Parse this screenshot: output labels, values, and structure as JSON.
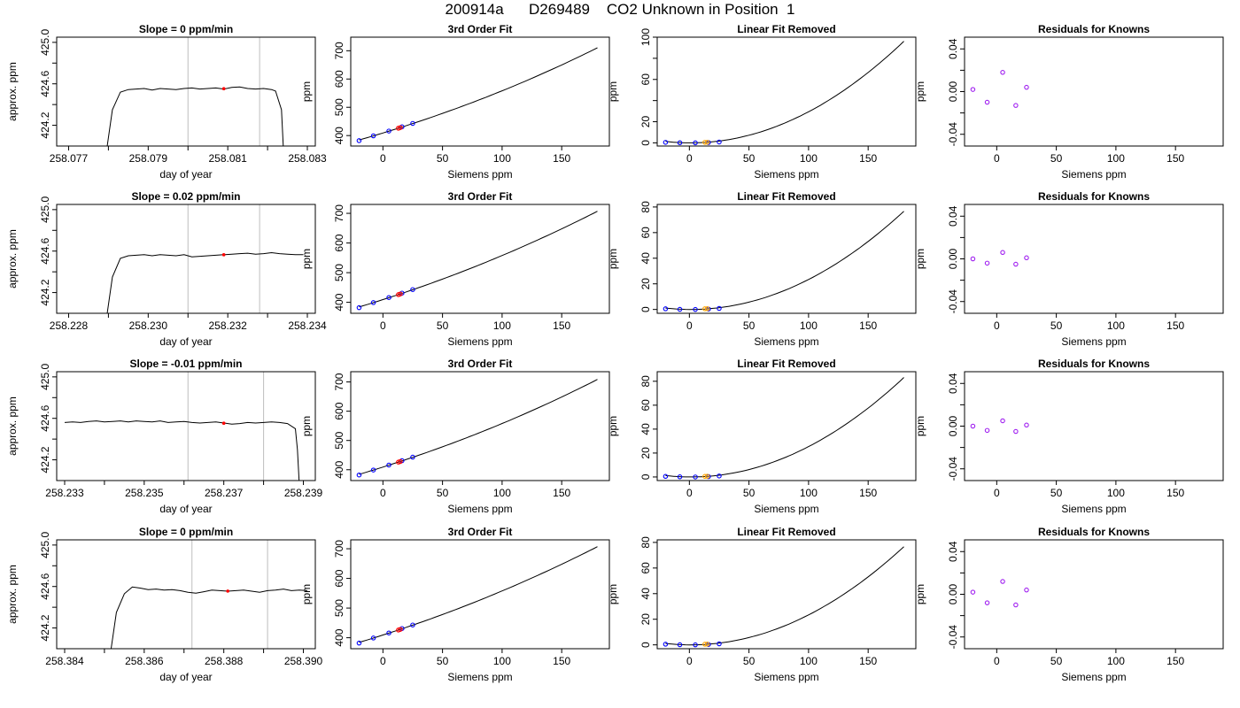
{
  "page_title": "200914a      D269489    CO2 Unknown in Position  1",
  "colors": {
    "trace": "#000000",
    "frame": "#000000",
    "vline": "#bebebe",
    "marker_red": "#ff0000",
    "marker_blue": "#0000ff",
    "marker_orange": "#ffa500",
    "marker_purple": "#a020f0"
  },
  "chart_data": [
    {
      "type": "line",
      "title": "Slope =  0  ppm/min",
      "xlabel": "day of year",
      "ylabel": "approx. ppm",
      "xlim": [
        258.0767,
        258.0832
      ],
      "ylim": [
        424.0,
        425.05
      ],
      "xticks": [
        258.077,
        258.078,
        258.079,
        258.08,
        258.081,
        258.082,
        258.083
      ],
      "xtick_labels": [
        "258.077",
        "",
        "258.079",
        "",
        "258.081",
        "",
        "258.083"
      ],
      "yticks": [
        424.2,
        424.4,
        424.6,
        424.8,
        425.0
      ],
      "ytick_labels": [
        "424.2",
        "",
        "424.6",
        "",
        "425.0"
      ],
      "vlines": [
        258.08,
        258.0818
      ],
      "x": [
        258.07795,
        258.0781,
        258.0783,
        258.0785,
        258.0787,
        258.0789,
        258.0791,
        258.0793,
        258.0795,
        258.0797,
        258.0799,
        258.0801,
        258.0803,
        258.0805,
        258.0807,
        258.0809,
        258.0811,
        258.0813,
        258.0815,
        258.0817,
        258.0819,
        258.0821,
        258.0822,
        258.08235,
        258.0824
      ],
      "y": [
        423.95,
        424.35,
        424.52,
        424.545,
        424.55,
        424.555,
        424.54,
        424.555,
        424.55,
        424.545,
        424.555,
        424.56,
        424.55,
        424.555,
        424.56,
        424.55,
        424.565,
        424.57,
        424.555,
        424.55,
        424.555,
        424.545,
        424.53,
        424.35,
        423.95
      ],
      "marker": {
        "x": 258.0809,
        "y": 424.553
      }
    },
    {
      "type": "line",
      "title": "3rd Order Fit",
      "xlabel": "Siemens ppm",
      "ylabel": "ppm",
      "xlim": [
        -27,
        190
      ],
      "ylim": [
        363,
        748
      ],
      "xticks": [
        0,
        50,
        100,
        150
      ],
      "xtick_labels": [
        "0",
        "50",
        "100",
        "150"
      ],
      "yticks": [
        400,
        500,
        600,
        700
      ],
      "ytick_labels": [
        "400",
        "500",
        "600",
        "700"
      ],
      "curve": {
        "x0": -20,
        "x1": 180,
        "c0": 409.11,
        "c1": 1.285,
        "c2": 0.00195,
        "c3": 1.2e-06
      },
      "knowns": {
        "x": [
          -20,
          -8,
          5,
          16,
          25
        ],
        "y": [
          382,
          399,
          416,
          431,
          443
        ]
      },
      "unknown": {
        "x": [
          13,
          14.5
        ],
        "y": [
          426,
          428
        ]
      }
    },
    {
      "type": "line",
      "title": "Linear Fit Removed",
      "xlabel": "Siemens ppm",
      "ylabel": "ppm",
      "xlim": [
        -27,
        190
      ],
      "ylim": [
        -3,
        100
      ],
      "xticks": [
        0,
        50,
        100,
        150
      ],
      "xtick_labels": [
        "0",
        "50",
        "100",
        "150"
      ],
      "yticks": [
        0,
        20,
        40,
        60,
        80,
        100
      ],
      "ytick_labels": [
        "0",
        "20",
        "",
        "60",
        "",
        "100"
      ],
      "curve": {
        "x0": -20,
        "x1": 180,
        "a": 0.003,
        "b": -0.006
      },
      "knowns": {
        "x": [
          -20,
          -8,
          5,
          16,
          25
        ],
        "y": [
          0.5,
          0.1,
          0.0,
          0.3,
          0.8
        ]
      },
      "unknown": {
        "x": [
          13,
          15
        ],
        "y": [
          0.5,
          0.6
        ]
      }
    },
    {
      "type": "scatter",
      "title": "Residuals for Knowns",
      "xlabel": "Siemens ppm",
      "ylabel": "ppm",
      "xlim": [
        -27,
        190
      ],
      "ylim": [
        -0.051,
        0.051
      ],
      "xticks": [
        0,
        50,
        100,
        150
      ],
      "xtick_labels": [
        "0",
        "50",
        "100",
        "150"
      ],
      "yticks": [
        -0.04,
        -0.02,
        0.0,
        0.02,
        0.04
      ],
      "ytick_labels": [
        "-0.04",
        "",
        "0.00",
        "",
        "0.04"
      ],
      "points": {
        "x": [
          -20,
          -8,
          5,
          16,
          25
        ],
        "y": [
          0.002,
          -0.01,
          0.018,
          -0.013,
          0.004
        ]
      }
    },
    {
      "type": "line",
      "title": "Slope =  0.02  ppm/min",
      "xlabel": "day of year",
      "ylabel": "approx. ppm",
      "xlim": [
        258.2277,
        258.2342
      ],
      "ylim": [
        424.0,
        425.05
      ],
      "xticks": [
        258.228,
        258.229,
        258.23,
        258.231,
        258.232,
        258.233,
        258.234
      ],
      "xtick_labels": [
        "258.228",
        "",
        "258.230",
        "",
        "258.232",
        "",
        "258.234"
      ],
      "yticks": [
        424.2,
        424.4,
        424.6,
        424.8,
        425.0
      ],
      "ytick_labels": [
        "424.2",
        "",
        "424.6",
        "",
        "425.0"
      ],
      "vlines": [
        258.231,
        258.2328
      ],
      "x": [
        258.22895,
        258.2291,
        258.2293,
        258.2295,
        258.2297,
        258.2299,
        258.2301,
        258.2303,
        258.2305,
        258.2307,
        258.2309,
        258.2311,
        258.2313,
        258.2315,
        258.2317,
        258.2319,
        258.2321,
        258.2323,
        258.2325,
        258.2327,
        258.2329,
        258.2331,
        258.2333,
        258.2335,
        258.2337,
        258.2339
      ],
      "y": [
        423.95,
        424.35,
        424.53,
        424.555,
        424.56,
        424.565,
        424.555,
        424.565,
        424.56,
        424.555,
        424.565,
        424.545,
        424.55,
        424.555,
        424.56,
        424.565,
        424.57,
        424.575,
        424.58,
        424.57,
        424.575,
        424.585,
        424.575,
        424.57,
        424.565,
        424.565
      ],
      "marker": {
        "x": 258.2319,
        "y": 424.565
      }
    },
    {
      "type": "line",
      "title": "3rd Order Fit",
      "xlabel": "Siemens ppm",
      "ylabel": "ppm",
      "xlim": [
        -27,
        190
      ],
      "ylim": [
        363,
        730
      ],
      "xticks": [
        0,
        50,
        100,
        150
      ],
      "xtick_labels": [
        "0",
        "50",
        "100",
        "150"
      ],
      "yticks": [
        400,
        500,
        600,
        700
      ],
      "ytick_labels": [
        "400",
        "500",
        "600",
        "700"
      ],
      "curve": {
        "x0": -20,
        "x1": 180,
        "c0": 409.11,
        "c1": 1.285,
        "c2": 0.00195,
        "c3": 6e-07
      },
      "knowns": {
        "x": [
          -20,
          -8,
          5,
          16,
          25
        ],
        "y": [
          382,
          399,
          416,
          431,
          443
        ]
      },
      "unknown": {
        "x": [
          13,
          14.5
        ],
        "y": [
          426,
          428
        ]
      }
    },
    {
      "type": "line",
      "title": "Linear Fit Removed",
      "xlabel": "Siemens ppm",
      "ylabel": "ppm",
      "xlim": [
        -27,
        190
      ],
      "ylim": [
        -3,
        82
      ],
      "xticks": [
        0,
        50,
        100,
        150
      ],
      "xtick_labels": [
        "0",
        "50",
        "100",
        "150"
      ],
      "yticks": [
        0,
        20,
        40,
        60,
        80
      ],
      "ytick_labels": [
        "0",
        "20",
        "40",
        "60",
        "80"
      ],
      "curve": {
        "x0": -20,
        "x1": 180,
        "a": 0.0024,
        "b": -0.006
      },
      "knowns": {
        "x": [
          -20,
          -8,
          5,
          16,
          25
        ],
        "y": [
          0.5,
          0.1,
          0.0,
          0.3,
          0.8
        ]
      },
      "unknown": {
        "x": [
          13,
          15
        ],
        "y": [
          0.5,
          0.6
        ]
      }
    },
    {
      "type": "scatter",
      "title": "Residuals for Knowns",
      "xlabel": "Siemens ppm",
      "ylabel": "ppm",
      "xlim": [
        -27,
        190
      ],
      "ylim": [
        -0.051,
        0.051
      ],
      "xticks": [
        0,
        50,
        100,
        150
      ],
      "xtick_labels": [
        "0",
        "50",
        "100",
        "150"
      ],
      "yticks": [
        -0.04,
        -0.02,
        0.0,
        0.02,
        0.04
      ],
      "ytick_labels": [
        "-0.04",
        "",
        "0.00",
        "",
        "0.04"
      ],
      "points": {
        "x": [
          -20,
          -8,
          5,
          16,
          25
        ],
        "y": [
          0.0,
          -0.004,
          0.006,
          -0.005,
          0.001
        ]
      }
    },
    {
      "type": "line",
      "title": "Slope =  -0.01  ppm/min",
      "xlabel": "day of year",
      "ylabel": "approx. ppm",
      "xlim": [
        258.2328,
        258.2393
      ],
      "ylim": [
        424.0,
        425.05
      ],
      "xticks": [
        258.233,
        258.234,
        258.235,
        258.236,
        258.237,
        258.238,
        258.239
      ],
      "xtick_labels": [
        "258.233",
        "",
        "258.235",
        "",
        "258.237",
        "",
        "258.239"
      ],
      "yticks": [
        424.2,
        424.4,
        424.6,
        424.8,
        425.0
      ],
      "ytick_labels": [
        "424.2",
        "",
        "424.6",
        "",
        "425.0"
      ],
      "vlines": [
        258.2361,
        258.238
      ],
      "x": [
        258.233,
        258.2332,
        258.2334,
        258.2336,
        258.2338,
        258.234,
        258.2342,
        258.2344,
        258.2346,
        258.2348,
        258.235,
        258.2352,
        258.2354,
        258.2356,
        258.2358,
        258.236,
        258.2362,
        258.2364,
        258.2366,
        258.2368,
        258.237,
        258.2372,
        258.2374,
        258.2376,
        258.2378,
        258.238,
        258.2382,
        258.2384,
        258.2386,
        258.2388,
        258.23885,
        258.2389
      ],
      "y": [
        424.56,
        424.565,
        424.56,
        424.57,
        424.575,
        424.565,
        424.57,
        424.575,
        424.565,
        424.575,
        424.57,
        424.565,
        424.575,
        424.56,
        424.565,
        424.57,
        424.56,
        424.555,
        424.56,
        424.565,
        424.555,
        424.545,
        424.55,
        424.56,
        424.555,
        424.56,
        424.565,
        424.56,
        424.55,
        424.5,
        424.3,
        423.95
      ],
      "marker": {
        "x": 258.237,
        "y": 424.553
      }
    },
    {
      "type": "line",
      "title": "3rd Order Fit",
      "xlabel": "Siemens ppm",
      "ylabel": "ppm",
      "xlim": [
        -27,
        190
      ],
      "ylim": [
        363,
        735
      ],
      "xticks": [
        0,
        50,
        100,
        150
      ],
      "xtick_labels": [
        "0",
        "50",
        "100",
        "150"
      ],
      "yticks": [
        400,
        500,
        600,
        700
      ],
      "ytick_labels": [
        "400",
        "500",
        "600",
        "700"
      ],
      "curve": {
        "x0": -20,
        "x1": 180,
        "c0": 409.11,
        "c1": 1.285,
        "c2": 0.00195,
        "c3": 8.5e-07
      },
      "knowns": {
        "x": [
          -20,
          -8,
          5,
          16,
          25
        ],
        "y": [
          382,
          399,
          416,
          431,
          443
        ]
      },
      "unknown": {
        "x": [
          13,
          14.5
        ],
        "y": [
          426,
          428
        ]
      }
    },
    {
      "type": "line",
      "title": "Linear Fit Removed",
      "xlabel": "Siemens ppm",
      "ylabel": "ppm",
      "xlim": [
        -27,
        190
      ],
      "ylim": [
        -3,
        88
      ],
      "xticks": [
        0,
        50,
        100,
        150
      ],
      "xtick_labels": [
        "0",
        "50",
        "100",
        "150"
      ],
      "yticks": [
        0,
        20,
        40,
        60,
        80
      ],
      "ytick_labels": [
        "0",
        "20",
        "40",
        "60",
        "80"
      ],
      "curve": {
        "x0": -20,
        "x1": 180,
        "a": 0.0026,
        "b": -0.006
      },
      "knowns": {
        "x": [
          -20,
          -8,
          5,
          16,
          25
        ],
        "y": [
          0.5,
          0.1,
          0.0,
          0.3,
          0.8
        ]
      },
      "unknown": {
        "x": [
          13,
          15
        ],
        "y": [
          0.5,
          0.6
        ]
      }
    },
    {
      "type": "scatter",
      "title": "Residuals for Knowns",
      "xlabel": "Siemens ppm",
      "ylabel": "ppm",
      "xlim": [
        -27,
        190
      ],
      "ylim": [
        -0.051,
        0.051
      ],
      "xticks": [
        0,
        50,
        100,
        150
      ],
      "xtick_labels": [
        "0",
        "50",
        "100",
        "150"
      ],
      "yticks": [
        -0.04,
        -0.02,
        0.0,
        0.02,
        0.04
      ],
      "ytick_labels": [
        "-0.04",
        "",
        "0.00",
        "",
        "0.04"
      ],
      "points": {
        "x": [
          -20,
          -8,
          5,
          16,
          25
        ],
        "y": [
          0.0,
          -0.004,
          0.005,
          -0.005,
          0.001
        ]
      }
    },
    {
      "type": "line",
      "title": "Slope =  0  ppm/min",
      "xlabel": "day of year",
      "ylabel": "approx. ppm",
      "xlim": [
        258.3838,
        258.3903
      ],
      "ylim": [
        424.0,
        425.05
      ],
      "xticks": [
        258.384,
        258.385,
        258.386,
        258.387,
        258.388,
        258.389,
        258.39
      ],
      "xtick_labels": [
        "258.384",
        "",
        "258.386",
        "",
        "258.388",
        "",
        "258.390"
      ],
      "yticks": [
        424.2,
        424.4,
        424.6,
        424.8,
        425.0
      ],
      "ytick_labels": [
        "424.2",
        "",
        "424.6",
        "",
        "425.0"
      ],
      "vlines": [
        258.3872,
        258.3891
      ],
      "x": [
        258.38515,
        258.3853,
        258.3855,
        258.3857,
        258.3859,
        258.3861,
        258.3863,
        258.3865,
        258.3867,
        258.3869,
        258.3871,
        258.3873,
        258.3875,
        258.3877,
        258.3879,
        258.3881,
        258.3883,
        258.3885,
        258.3887,
        258.3889,
        258.3891,
        258.3893,
        258.3895,
        258.3897,
        258.3899,
        258.3901
      ],
      "y": [
        423.95,
        424.35,
        424.53,
        424.595,
        424.585,
        424.57,
        424.575,
        424.565,
        424.57,
        424.56,
        424.545,
        424.535,
        424.55,
        424.565,
        424.56,
        424.555,
        424.56,
        424.565,
        424.555,
        424.545,
        424.56,
        424.565,
        424.575,
        424.56,
        424.565,
        424.56
      ],
      "marker": {
        "x": 258.3881,
        "y": 424.556
      }
    },
    {
      "type": "line",
      "title": "3rd Order Fit",
      "xlabel": "Siemens ppm",
      "ylabel": "ppm",
      "xlim": [
        -27,
        190
      ],
      "ylim": [
        363,
        730
      ],
      "xticks": [
        0,
        50,
        100,
        150
      ],
      "xtick_labels": [
        "0",
        "50",
        "100",
        "150"
      ],
      "yticks": [
        400,
        500,
        600,
        700
      ],
      "ytick_labels": [
        "400",
        "500",
        "600",
        "700"
      ],
      "curve": {
        "x0": -20,
        "x1": 180,
        "c0": 409.11,
        "c1": 1.285,
        "c2": 0.00195,
        "c3": 6e-07
      },
      "knowns": {
        "x": [
          -20,
          -8,
          5,
          16,
          25
        ],
        "y": [
          382,
          399,
          416,
          431,
          443
        ]
      },
      "unknown": {
        "x": [
          13,
          14.5
        ],
        "y": [
          426,
          428
        ]
      }
    },
    {
      "type": "line",
      "title": "Linear Fit Removed",
      "xlabel": "Siemens ppm",
      "ylabel": "ppm",
      "xlim": [
        -27,
        190
      ],
      "ylim": [
        -3,
        82
      ],
      "xticks": [
        0,
        50,
        100,
        150
      ],
      "xtick_labels": [
        "0",
        "50",
        "100",
        "150"
      ],
      "yticks": [
        0,
        20,
        40,
        60,
        80
      ],
      "ytick_labels": [
        "0",
        "20",
        "40",
        "60",
        "80"
      ],
      "curve": {
        "x0": -20,
        "x1": 180,
        "a": 0.0024,
        "b": -0.006
      },
      "knowns": {
        "x": [
          -20,
          -8,
          5,
          16,
          25
        ],
        "y": [
          0.5,
          0.1,
          0.0,
          0.3,
          0.8
        ]
      },
      "unknown": {
        "x": [
          13,
          15
        ],
        "y": [
          0.5,
          0.6
        ]
      }
    },
    {
      "type": "scatter",
      "title": "Residuals for Knowns",
      "xlabel": "Siemens ppm",
      "ylabel": "ppm",
      "xlim": [
        -27,
        190
      ],
      "ylim": [
        -0.051,
        0.051
      ],
      "xticks": [
        0,
        50,
        100,
        150
      ],
      "xtick_labels": [
        "0",
        "50",
        "100",
        "150"
      ],
      "yticks": [
        -0.04,
        -0.02,
        0.0,
        0.02,
        0.04
      ],
      "ytick_labels": [
        "-0.04",
        "",
        "0.00",
        "",
        "0.04"
      ],
      "points": {
        "x": [
          -20,
          -8,
          5,
          16,
          25
        ],
        "y": [
          0.002,
          -0.008,
          0.012,
          -0.01,
          0.004
        ]
      }
    }
  ]
}
